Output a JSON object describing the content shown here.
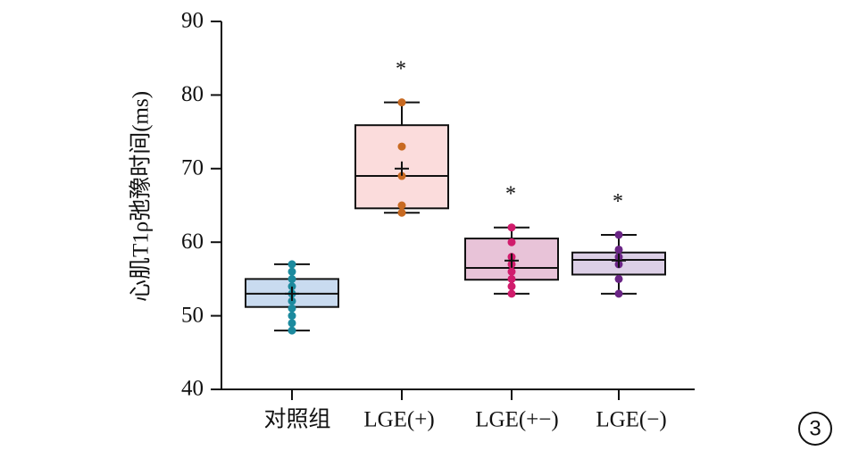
{
  "chart_data": {
    "type": "box",
    "ylabel": "心肌T1ρ弛豫时间(ms)",
    "ylim": [
      40,
      90
    ],
    "yticks": [
      40,
      50,
      60,
      70,
      80,
      90
    ],
    "categories": [
      "对照组",
      "LGE(+)",
      "LGE(+−)",
      "LGE(−)"
    ],
    "series": [
      {
        "name": "对照组",
        "whisker_low": 48,
        "q1": 51.2,
        "median": 53,
        "q3": 55,
        "whisker_high": 57,
        "mean": 53,
        "points": [
          48,
          49,
          50,
          51,
          52,
          53,
          53,
          54,
          55,
          56,
          57
        ],
        "box_fill": "#c9dbf0",
        "point_color": "#1c8a9e",
        "significance": ""
      },
      {
        "name": "LGE(+)",
        "whisker_low": 64,
        "q1": 64.6,
        "median": 69,
        "q3": 75.9,
        "whisker_high": 79,
        "mean": 70,
        "points": [
          64,
          65,
          69,
          73,
          79
        ],
        "box_fill": "#fbdcdc",
        "point_color": "#c86a22",
        "significance": "*"
      },
      {
        "name": "LGE(+−)",
        "whisker_low": 53,
        "q1": 54.9,
        "median": 56.5,
        "q3": 60.5,
        "whisker_high": 62,
        "mean": 57.5,
        "points": [
          53,
          54,
          55,
          56,
          57,
          58,
          60,
          62
        ],
        "box_fill": "#e8c3d8",
        "point_color": "#d01c6c",
        "significance": "*"
      },
      {
        "name": "LGE(−)",
        "whisker_low": 53,
        "q1": 55.6,
        "median": 57.6,
        "q3": 58.6,
        "whisker_high": 61,
        "mean": 57.5,
        "points": [
          53,
          55,
          57,
          58,
          59,
          61
        ],
        "box_fill": "#dccfe6",
        "point_color": "#6a2585",
        "significance": "*"
      }
    ]
  },
  "panel_number": "3"
}
